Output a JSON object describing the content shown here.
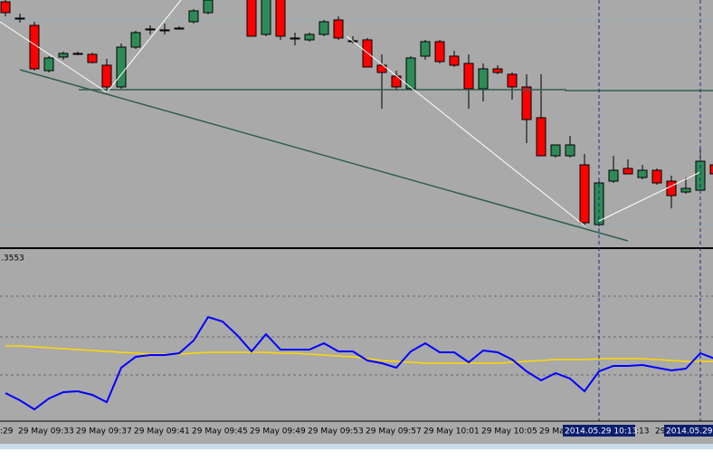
{
  "chart_data": [
    {
      "type": "candlestick",
      "categories": [
        null,
        "29 May 09:33",
        null,
        null,
        null,
        "29 May 09:37",
        null,
        null,
        null,
        "29 May 09:41",
        null,
        null,
        null,
        "29 May 09:45",
        null,
        null,
        null,
        "29 May 09:49",
        null,
        null,
        null,
        "29 May 09:53",
        null,
        null,
        null,
        "29 May 09:57",
        null,
        null,
        null,
        "29 May 10:01",
        null,
        null,
        null,
        "29 May 10:05",
        null,
        null,
        null,
        "29 Ma",
        null,
        null,
        null,
        null,
        null,
        null,
        null,
        "29",
        null,
        null,
        null,
        null
      ],
      "open": [
        268,
        250,
        242,
        192,
        207,
        211,
        210,
        198,
        174,
        218,
        238,
        237,
        239,
        246,
        256,
        290,
        295,
        280,
        232,
        275,
        228,
        226,
        232,
        248,
        225,
        226,
        198,
        186,
        172,
        208,
        224,
        208,
        200,
        172,
        194,
        188,
        174,
        140,
        98,
        98,
        88,
        22,
        70,
        84,
        74,
        82,
        70,
        58,
        60,
        88
      ],
      "high": [
        270,
        255,
        246,
        208,
        213,
        213,
        212,
        205,
        222,
        236,
        242,
        244,
        241,
        260,
        270,
        300,
        310,
        290,
        280,
        280,
        234,
        234,
        248,
        252,
        230,
        228,
        210,
        192,
        208,
        226,
        226,
        214,
        210,
        200,
        198,
        190,
        188,
        188,
        110,
        120,
        100,
        72,
        98,
        94,
        88,
        84,
        76,
        74,
        106,
        92
      ],
      "low": [
        252,
        245,
        192,
        190,
        204,
        209,
        200,
        166,
        172,
        216,
        232,
        232,
        237,
        244,
        254,
        280,
        285,
        230,
        230,
        226,
        220,
        224,
        230,
        226,
        222,
        196,
        150,
        170,
        170,
        204,
        200,
        196,
        150,
        158,
        188,
        160,
        112,
        98,
        96,
        96,
        20,
        20,
        68,
        78,
        72,
        66,
        40,
        56,
        58,
        78
      ],
      "close": [
        256,
        250,
        194,
        206,
        211,
        211,
        201,
        174,
        218,
        234,
        238,
        237,
        239,
        258,
        270,
        300,
        305,
        230,
        275,
        230,
        228,
        232,
        246,
        228,
        225,
        196,
        190,
        174,
        206,
        224,
        202,
        198,
        172,
        194,
        190,
        174,
        138,
        98,
        110,
        110,
        24,
        68,
        82,
        78,
        82,
        68,
        54,
        62,
        92,
        78
      ],
      "up_color": "#2e8b57",
      "down_color": "#ff0000",
      "ylim": [
        0,
        270
      ],
      "x_fragments": [
        ":29",
        ":13"
      ],
      "crosshair_labels": [
        "2014.05.29 10:13",
        "2014.05.29"
      ]
    },
    {
      "type": "line",
      "label": ".3553",
      "series": [
        {
          "color": "#0000ff",
          "values": [
            31,
            23,
            13,
            25,
            32,
            33,
            29,
            21,
            59,
            71,
            73,
            73,
            75,
            89,
            115,
            110,
            95,
            77,
            96,
            79,
            79,
            79,
            86,
            77,
            77,
            67,
            64,
            59,
            77,
            86,
            76,
            76,
            65,
            78,
            76,
            68,
            55,
            45,
            53,
            47,
            33,
            55,
            61,
            61,
            62,
            59,
            56,
            58,
            75,
            69
          ]
        },
        {
          "color": "#ffd700",
          "values": [
            83,
            83,
            82,
            81,
            80,
            79,
            78,
            77,
            76,
            75,
            74,
            74,
            74,
            75,
            76,
            76,
            76,
            76,
            76,
            75,
            75,
            74,
            73,
            72,
            71,
            69,
            67,
            66,
            65,
            64,
            64,
            64,
            64,
            64,
            64,
            65,
            66,
            67,
            68,
            68,
            68,
            69,
            69,
            69,
            69,
            68,
            67,
            66,
            66,
            66
          ]
        }
      ],
      "ylim": [
        0,
        189
      ]
    }
  ]
}
